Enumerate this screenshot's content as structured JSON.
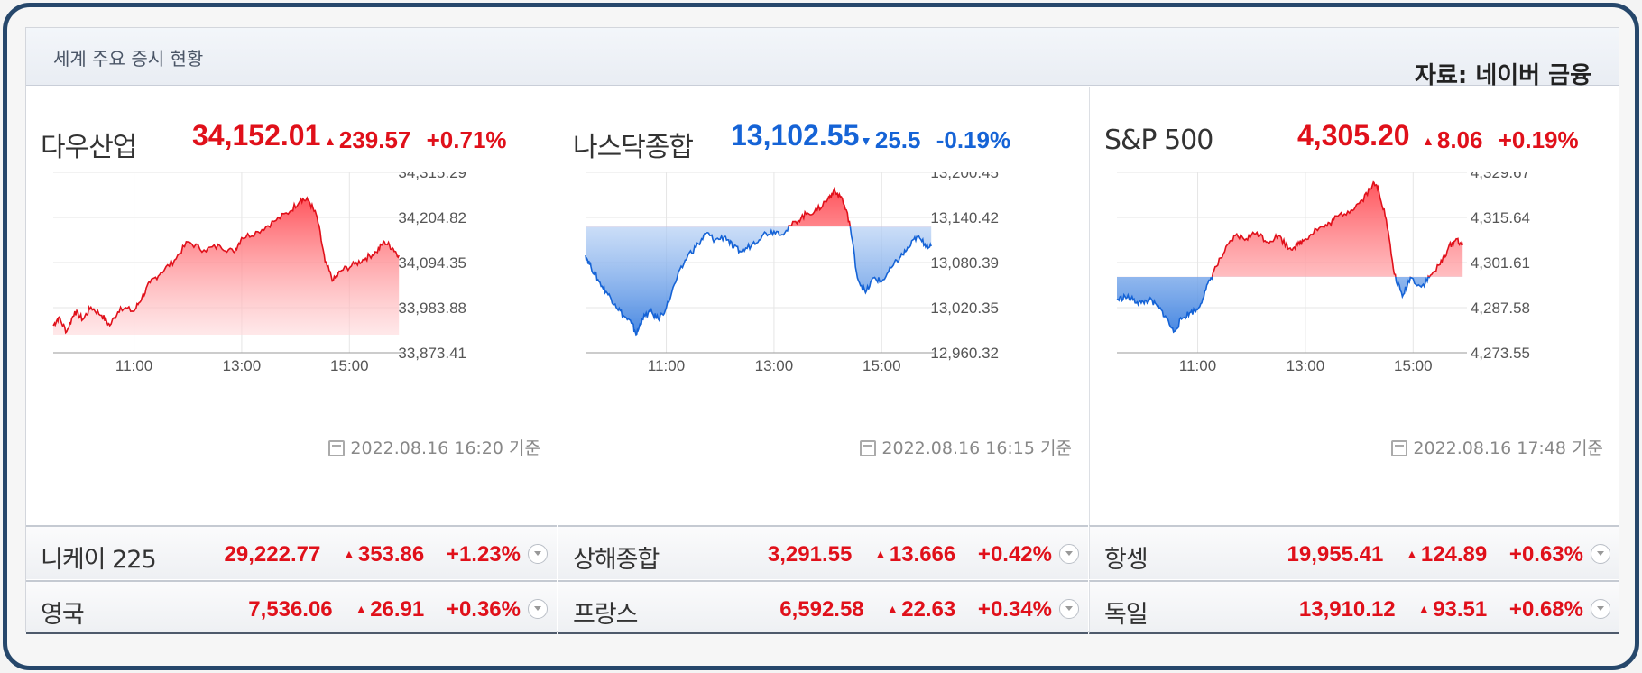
{
  "panel": {
    "title": "세계 주요 증시 현황",
    "source": "자료: 네이버 금융"
  },
  "indices": [
    {
      "name": "다우산업",
      "price": "34,152.01",
      "change": "239.57",
      "change_pct": "+0.71%",
      "direction": "up",
      "stamp": "2022.08.16 16:20 기준",
      "chart_data": {
        "type": "area",
        "ylim": [
          33873.41,
          34315.29
        ],
        "yticks": [
          "34,315.29",
          "34,204.82",
          "34,094.35",
          "33,983.88",
          "33,873.41"
        ],
        "xticks": [
          "11:00",
          "13:00",
          "15:00"
        ],
        "x_range_hours": [
          9.5,
          16
        ],
        "baseline": 33912.6,
        "points": [
          [
            9.5,
            33940
          ],
          [
            9.6,
            33960
          ],
          [
            9.75,
            33925
          ],
          [
            9.9,
            33975
          ],
          [
            10.05,
            33955
          ],
          [
            10.2,
            33985
          ],
          [
            10.4,
            33965
          ],
          [
            10.55,
            33940
          ],
          [
            10.75,
            33985
          ],
          [
            11.0,
            33975
          ],
          [
            11.15,
            34010
          ],
          [
            11.3,
            34045
          ],
          [
            11.5,
            34070
          ],
          [
            11.75,
            34100
          ],
          [
            12.0,
            34145
          ],
          [
            12.3,
            34125
          ],
          [
            12.6,
            34135
          ],
          [
            12.85,
            34120
          ],
          [
            13.0,
            34155
          ],
          [
            13.3,
            34170
          ],
          [
            13.6,
            34195
          ],
          [
            13.9,
            34220
          ],
          [
            14.1,
            34250
          ],
          [
            14.25,
            34245
          ],
          [
            14.4,
            34205
          ],
          [
            14.55,
            34095
          ],
          [
            14.7,
            34050
          ],
          [
            14.85,
            34075
          ],
          [
            15.1,
            34090
          ],
          [
            15.3,
            34105
          ],
          [
            15.5,
            34120
          ],
          [
            15.65,
            34145
          ],
          [
            15.8,
            34130
          ],
          [
            15.92,
            34112
          ]
        ]
      }
    },
    {
      "name": "나스닥종합",
      "price": "13,102.55",
      "change": "25.5",
      "change_pct": "-0.19%",
      "direction": "down",
      "stamp": "2022.08.16 16:15 기준",
      "chart_data": {
        "type": "area",
        "ylim": [
          12960.32,
          13200.45
        ],
        "yticks": [
          "13,200.45",
          "13,140.42",
          "13,080.39",
          "13,020.35",
          "12,960.32"
        ],
        "xticks": [
          "11:00",
          "13:00",
          "15:00"
        ],
        "x_range_hours": [
          9.5,
          16
        ],
        "baseline": 13128.1,
        "points": [
          [
            9.5,
            13090
          ],
          [
            9.6,
            13075
          ],
          [
            9.75,
            13055
          ],
          [
            9.9,
            13040
          ],
          [
            10.05,
            13025
          ],
          [
            10.2,
            13010
          ],
          [
            10.35,
            13000
          ],
          [
            10.45,
            12985
          ],
          [
            10.55,
            13005
          ],
          [
            10.7,
            13015
          ],
          [
            10.85,
            13005
          ],
          [
            11.0,
            13020
          ],
          [
            11.2,
            13060
          ],
          [
            11.4,
            13090
          ],
          [
            11.6,
            13105
          ],
          [
            11.75,
            13120
          ],
          [
            11.9,
            13110
          ],
          [
            12.1,
            13115
          ],
          [
            12.25,
            13100
          ],
          [
            12.4,
            13095
          ],
          [
            12.6,
            13105
          ],
          [
            12.8,
            13118
          ],
          [
            13.0,
            13122
          ],
          [
            13.2,
            13120
          ],
          [
            13.4,
            13135
          ],
          [
            13.6,
            13145
          ],
          [
            13.8,
            13150
          ],
          [
            14.0,
            13165
          ],
          [
            14.1,
            13175
          ],
          [
            14.25,
            13168
          ],
          [
            14.4,
            13135
          ],
          [
            14.55,
            13060
          ],
          [
            14.7,
            13040
          ],
          [
            14.85,
            13060
          ],
          [
            15.0,
            13055
          ],
          [
            15.2,
            13075
          ],
          [
            15.35,
            13088
          ],
          [
            15.5,
            13100
          ],
          [
            15.65,
            13115
          ],
          [
            15.8,
            13105
          ],
          [
            15.92,
            13102
          ]
        ]
      }
    },
    {
      "name": "S&P 500",
      "price": "4,305.20",
      "change": "8.06",
      "change_pct": "+0.19%",
      "direction": "up",
      "stamp": "2022.08.16 17:48 기준",
      "chart_data": {
        "type": "area",
        "ylim": [
          4273.55,
          4329.67
        ],
        "yticks": [
          "4,329.67",
          "4,315.64",
          "4,301.61",
          "4,287.58",
          "4,273.55"
        ],
        "xticks": [
          "11:00",
          "13:00",
          "15:00"
        ],
        "x_range_hours": [
          9.5,
          16
        ],
        "baseline": 4297.14,
        "points": [
          [
            9.5,
            4290
          ],
          [
            9.65,
            4291
          ],
          [
            9.8,
            4290
          ],
          [
            9.95,
            4289
          ],
          [
            10.1,
            4290
          ],
          [
            10.25,
            4288
          ],
          [
            10.4,
            4285
          ],
          [
            10.55,
            4280
          ],
          [
            10.7,
            4284
          ],
          [
            10.85,
            4286
          ],
          [
            11.0,
            4287
          ],
          [
            11.15,
            4293
          ],
          [
            11.3,
            4299
          ],
          [
            11.5,
            4305
          ],
          [
            11.7,
            4310
          ],
          [
            11.9,
            4309
          ],
          [
            12.1,
            4311
          ],
          [
            12.3,
            4308
          ],
          [
            12.5,
            4310
          ],
          [
            12.7,
            4306
          ],
          [
            12.85,
            4307
          ],
          [
            13.0,
            4309
          ],
          [
            13.2,
            4312
          ],
          [
            13.4,
            4313
          ],
          [
            13.6,
            4316
          ],
          [
            13.85,
            4318
          ],
          [
            14.05,
            4321
          ],
          [
            14.25,
            4326
          ],
          [
            14.35,
            4325
          ],
          [
            14.5,
            4315
          ],
          [
            14.65,
            4298
          ],
          [
            14.8,
            4291
          ],
          [
            14.95,
            4297
          ],
          [
            15.15,
            4294
          ],
          [
            15.3,
            4297
          ],
          [
            15.5,
            4301
          ],
          [
            15.65,
            4306
          ],
          [
            15.8,
            4309
          ],
          [
            15.92,
            4307
          ]
        ]
      }
    }
  ],
  "mini_rows": [
    [
      {
        "name": "니케이 225",
        "price": "29,222.77",
        "change": "353.86",
        "change_pct": "+1.23%"
      },
      {
        "name": "상해종합",
        "price": "3,291.55",
        "change": "13.666",
        "change_pct": "+0.42%"
      },
      {
        "name": "항셍",
        "price": "19,955.41",
        "change": "124.89",
        "change_pct": "+0.63%"
      }
    ],
    [
      {
        "name": "영국",
        "price": "7,536.06",
        "change": "26.91",
        "change_pct": "+0.36%"
      },
      {
        "name": "프랑스",
        "price": "6,592.58",
        "change": "22.63",
        "change_pct": "+0.34%"
      },
      {
        "name": "독일",
        "price": "13,910.12",
        "change": "93.51",
        "change_pct": "+0.68%"
      }
    ]
  ],
  "colors": {
    "up": "#e0101a",
    "down": "#1563d6",
    "frame": "#26476b"
  },
  "icons": {
    "up": "triangle-up-icon",
    "down": "triangle-down-icon",
    "calendar": "calendar-icon",
    "expand": "chevron-down-icon"
  }
}
